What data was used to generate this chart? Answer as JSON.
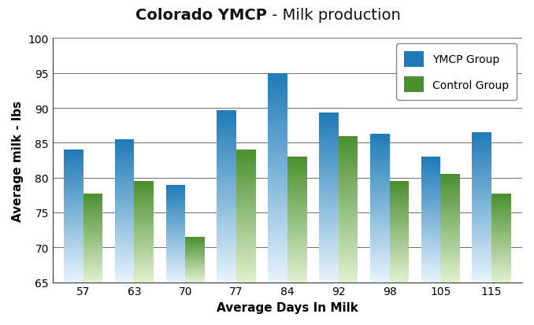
{
  "title_bold": "Colorado YMCP",
  "title_normal": " - Milk production",
  "xlabel": "Average Days In Milk",
  "ylabel": "Average milk - lbs",
  "categories": [
    57,
    63,
    70,
    77,
    84,
    92,
    98,
    105,
    115
  ],
  "ymcp_values": [
    84.0,
    85.5,
    79.0,
    89.7,
    95.0,
    89.3,
    86.3,
    83.0,
    86.5
  ],
  "control_values": [
    77.7,
    79.5,
    71.5,
    84.0,
    83.0,
    86.0,
    79.5,
    80.5,
    77.7
  ],
  "ylim": [
    65,
    100
  ],
  "yticks": [
    65,
    70,
    75,
    80,
    85,
    90,
    95,
    100
  ],
  "ymcp_top_color": "#1e7ab8",
  "ymcp_bottom_color": "#e8f4fc",
  "control_top_color": "#4a8f30",
  "control_bottom_color": "#e0f0d0",
  "background_color": "#ffffff",
  "grid_color": "#555555",
  "bar_width": 0.38,
  "legend_ymcp": "YMCP Group",
  "legend_control": "Control Group",
  "title_fontsize": 14,
  "axis_label_fontsize": 11,
  "tick_fontsize": 10
}
